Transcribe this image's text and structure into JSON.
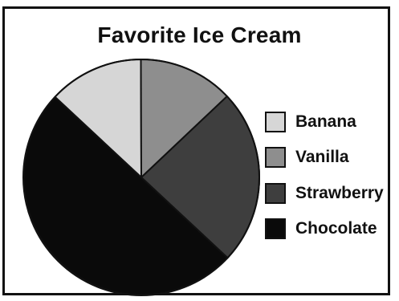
{
  "chart_data": {
    "type": "pie",
    "title": "Favorite Ice Cream",
    "legend_position": "right",
    "slices": [
      {
        "label": "Banana",
        "value": 13,
        "color": "#d6d6d6"
      },
      {
        "label": "Vanilla",
        "value": 13,
        "color": "#8e8e8e"
      },
      {
        "label": "Strawberry",
        "value": 24,
        "color": "#3e3e3e"
      },
      {
        "label": "Chocolate",
        "value": 50,
        "color": "#0a0a0a"
      }
    ]
  }
}
